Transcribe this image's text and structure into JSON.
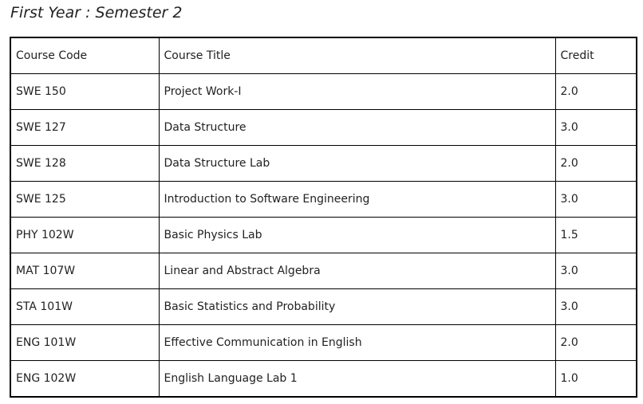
{
  "heading": "First Year : Semester 2",
  "table": {
    "headers": {
      "code": "Course Code",
      "title": "Course Title",
      "credit": "Credit"
    },
    "rows": [
      {
        "code": "SWE 150",
        "title": "Project Work-I",
        "credit": "2.0"
      },
      {
        "code": "SWE 127",
        "title": "Data Structure",
        "credit": "3.0"
      },
      {
        "code": "SWE 128",
        "title": "Data Structure Lab",
        "credit": "2.0"
      },
      {
        "code": "SWE 125",
        "title": "Introduction to Software Engineering",
        "credit": "3.0"
      },
      {
        "code": "PHY 102W",
        "title": "Basic Physics Lab",
        "credit": "1.5"
      },
      {
        "code": "MAT 107W",
        "title": "Linear and Abstract Algebra",
        "credit": "3.0"
      },
      {
        "code": "STA 101W",
        "title": "Basic Statistics and Probability",
        "credit": "3.0"
      },
      {
        "code": "ENG 101W",
        "title": "Effective Communication in English",
        "credit": "2.0"
      },
      {
        "code": "ENG 102W",
        "title": "English Language Lab 1",
        "credit": "1.0"
      }
    ]
  }
}
